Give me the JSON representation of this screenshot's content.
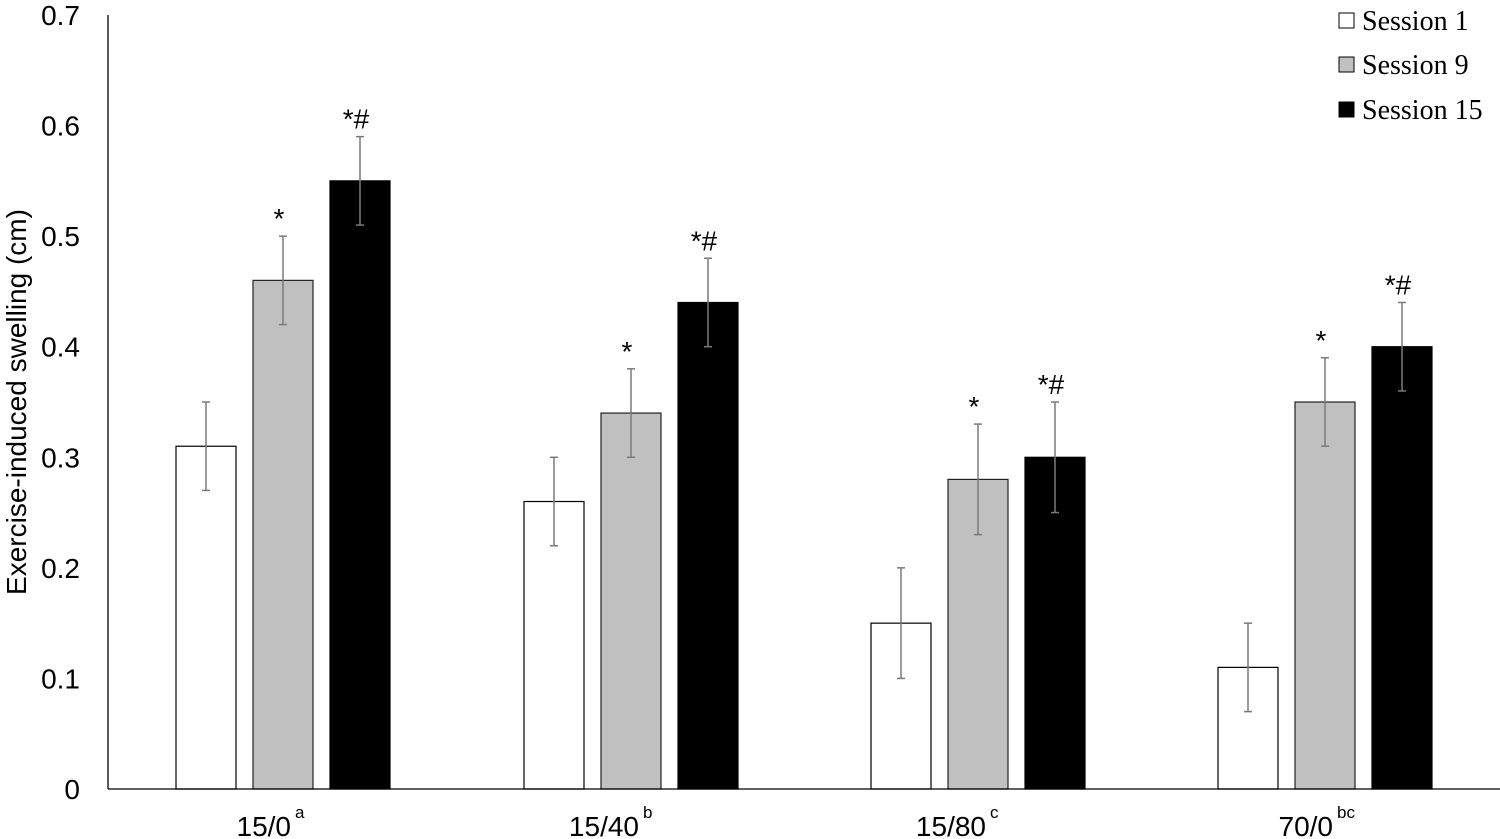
{
  "chart_data": {
    "type": "bar",
    "title": "",
    "xlabel": "",
    "ylabel": "Exercise-induced swelling (cm)",
    "ylim": [
      0,
      0.7
    ],
    "yticks": [
      0,
      0.1,
      0.2,
      0.3,
      0.4,
      0.5,
      0.6,
      0.7
    ],
    "ytick_labels": [
      "0",
      "0.1",
      "0.2",
      "0.3",
      "0.4",
      "0.5",
      "0.6",
      "0.7"
    ],
    "grid": false,
    "legend_position": "top-right",
    "categories": [
      "15/0",
      "15/40",
      "15/80",
      "70/0"
    ],
    "category_superscripts": [
      "a",
      "b",
      "c",
      "bc"
    ],
    "series": [
      {
        "name": "Session 1",
        "color": "#ffffff",
        "values": [
          0.31,
          0.26,
          0.15,
          0.11
        ],
        "errors": [
          0.04,
          0.04,
          0.05,
          0.04
        ],
        "annotations": [
          "",
          "",
          "",
          ""
        ]
      },
      {
        "name": "Session 9",
        "color": "#c0c0c0",
        "values": [
          0.46,
          0.34,
          0.28,
          0.35
        ],
        "errors": [
          0.04,
          0.04,
          0.05,
          0.04
        ],
        "annotations": [
          "*",
          "*",
          "*",
          "*"
        ]
      },
      {
        "name": "Session 15",
        "color": "#000000",
        "values": [
          0.55,
          0.44,
          0.3,
          0.4
        ],
        "errors": [
          0.04,
          0.04,
          0.05,
          0.04
        ],
        "annotations": [
          "*#",
          "*#",
          "*#",
          "*#"
        ]
      }
    ]
  },
  "legend": {
    "items": [
      {
        "label": "Session 1",
        "color": "#ffffff"
      },
      {
        "label": "Session 9",
        "color": "#c0c0c0"
      },
      {
        "label": "Session 15",
        "color": "#000000"
      }
    ]
  }
}
